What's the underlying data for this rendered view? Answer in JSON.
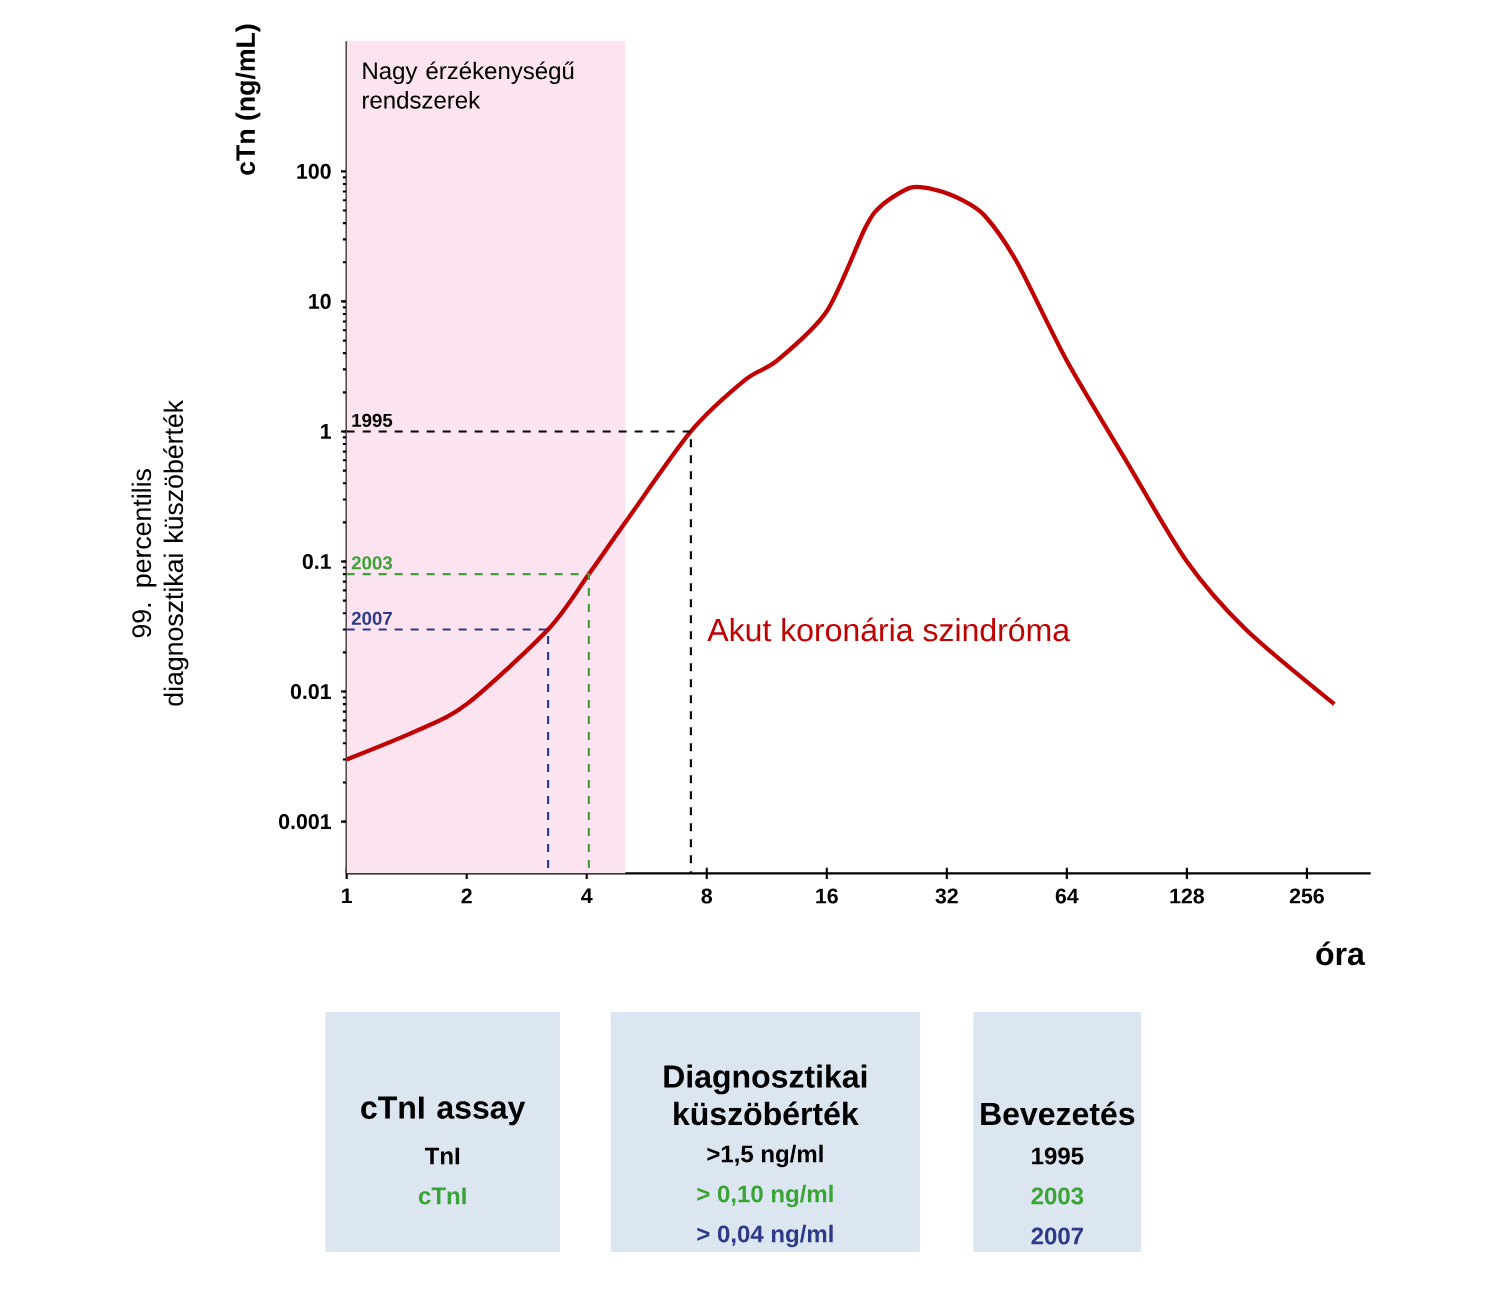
{
  "chart_data": {
    "type": "line",
    "ylabel": "cTn (ng/mL)",
    "xlabel": "óra",
    "log": "xy",
    "xlim": [
      1,
      370
    ],
    "ylim": [
      0.0004,
      1000
    ],
    "xticks": [
      1,
      2,
      4,
      8,
      16,
      32,
      64,
      128,
      256
    ],
    "yticks": [
      0.001,
      0.01,
      0.1,
      1,
      10,
      100
    ],
    "series": [
      {
        "color": "#c00000",
        "x": [
          1,
          1.5,
          2,
          3.2,
          4.05,
          5,
          7.3,
          10,
          12,
          16,
          20,
          22,
          26,
          30,
          35,
          40,
          48,
          64,
          90,
          128,
          180,
          300
        ],
        "values": [
          0.003,
          0.005,
          0.008,
          0.03,
          0.08,
          0.2,
          1,
          2.5,
          3.5,
          8.4,
          37,
          55,
          75,
          72,
          60,
          45,
          20,
          3.5,
          0.6,
          0.1,
          0.03,
          0.008
        ]
      },
      {
        "name": "1995",
        "color": "#000000",
        "line_style": "dashed",
        "x": [
          1,
          7.3,
          7.3
        ],
        "values": [
          1,
          1,
          0.0004
        ]
      },
      {
        "name": "2003",
        "color": "#3aa335",
        "line_style": "dashed",
        "x": [
          1,
          4.05,
          4.05
        ],
        "values": [
          0.08,
          0.08,
          0.0004
        ]
      },
      {
        "name": "2007",
        "color": "#2e3a87",
        "line_style": "dashed",
        "x": [
          1,
          3.2,
          3.2
        ],
        "values": [
          0.03,
          0.03,
          0.0004
        ]
      }
    ],
    "bands": [
      {
        "axis": "x",
        "from": 1,
        "to": 5,
        "color": "#fbe3ef",
        "label": "Nagy érzékenységű rendszerek"
      }
    ],
    "annotations": [
      {
        "text": "Akut koronária szindróma",
        "x": 7.6,
        "y": 0.03
      },
      "99. percentilis diagnosztikai küszöbérték",
      "cTnI assay",
      "TnI",
      "cTnI",
      "Diagnosztikai küszöbérték",
      ">1,5 ng/ml",
      "> 0,10 ng/ml",
      "> 0,04 ng/ml",
      "Bevezetés",
      "1995",
      "2003",
      "2007"
    ]
  }
}
